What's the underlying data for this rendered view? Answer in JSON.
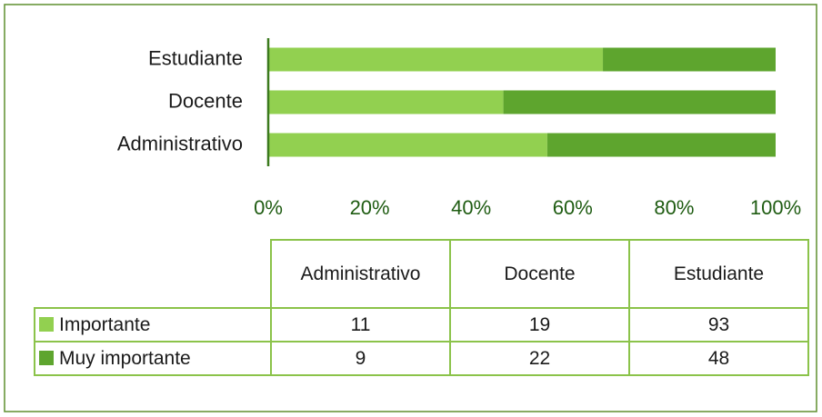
{
  "chart_data": {
    "type": "bar",
    "orientation": "horizontal",
    "stacked": "percent",
    "categories": [
      "Administrativo",
      "Docente",
      "Estudiante"
    ],
    "series": [
      {
        "name": "Importante",
        "color": "#92d050",
        "values": [
          11,
          19,
          93
        ]
      },
      {
        "name": "Muy importante",
        "color": "#5ea52e",
        "values": [
          9,
          22,
          48
        ]
      }
    ],
    "xlim": [
      0,
      100
    ],
    "xticks": [
      {
        "value": 0,
        "label": "0%"
      },
      {
        "value": 20,
        "label": "20%"
      },
      {
        "value": 40,
        "label": "40%"
      },
      {
        "value": 60,
        "label": "60%"
      },
      {
        "value": 80,
        "label": "80%"
      },
      {
        "value": 100,
        "label": "100%"
      }
    ],
    "data_table": true
  }
}
